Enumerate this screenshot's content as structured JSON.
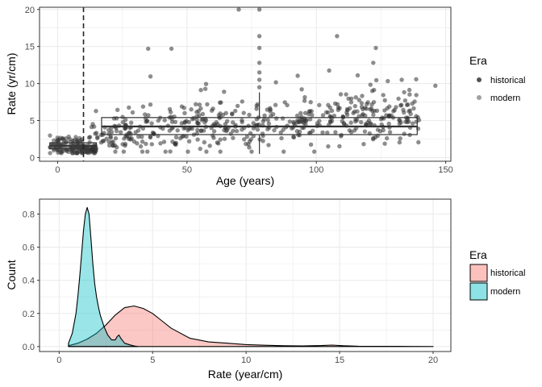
{
  "chart_data": [
    {
      "type": "scatter",
      "panel": "top",
      "xlabel": "Age (years)",
      "ylabel": "Rate (yr/cm)",
      "xlim": [
        -7,
        152
      ],
      "ylim": [
        -0.5,
        20.3
      ],
      "xticks": [
        0,
        50,
        100,
        150
      ],
      "yticks": [
        0,
        5,
        10,
        15,
        20
      ],
      "grid": true,
      "vline": {
        "x": 10,
        "style": "dashed"
      },
      "legend": {
        "title": "Era",
        "placement": "right",
        "entries": [
          "historical",
          "modern"
        ]
      },
      "series": [
        {
          "name": "modern",
          "x_range": [
            -3,
            15
          ],
          "y_range": [
            0.6,
            4.2
          ],
          "count": 170
        },
        {
          "name": "historical",
          "x_range": [
            10,
            146
          ],
          "y_range": [
            0.8,
            20
          ],
          "count": 520
        }
      ],
      "boxplots": [
        {
          "group": "modern",
          "xmin": -3,
          "xmax": 15,
          "q1": 1.2,
          "median": 1.6,
          "q3": 2.0,
          "whisker_low": 0.7,
          "whisker_high": 2.6,
          "center": 6
        },
        {
          "group": "historical",
          "xmin": 17,
          "xmax": 139,
          "q1": 3.1,
          "median": 4.2,
          "q3": 5.4,
          "whisker_low": 0.5,
          "whisker_high": 8.8,
          "center": 78
        }
      ]
    },
    {
      "type": "area",
      "panel": "bottom",
      "xlabel": "Rate (year/cm)",
      "ylabel": "Count",
      "xlim": [
        -1.05,
        20.95
      ],
      "ylim": [
        -0.03,
        0.89
      ],
      "xticks": [
        0,
        5,
        10,
        15,
        20
      ],
      "yticks": [
        0.0,
        0.2,
        0.4,
        0.6,
        0.8
      ],
      "grid": true,
      "legend": {
        "title": "Era",
        "placement": "right",
        "entries": [
          "historical",
          "modern"
        ]
      },
      "series": [
        {
          "name": "historical",
          "color": "#F8766D",
          "x": [
            0.5,
            1.0,
            1.5,
            2.0,
            2.5,
            3.0,
            3.5,
            4.0,
            4.5,
            5.0,
            5.5,
            6.0,
            7.0,
            8.0,
            9.0,
            10.0,
            11.0,
            12.0,
            13.0,
            14.0,
            14.6,
            15.2,
            16.0,
            18.0,
            20.0
          ],
          "y": [
            0.005,
            0.02,
            0.045,
            0.08,
            0.13,
            0.19,
            0.235,
            0.245,
            0.23,
            0.2,
            0.155,
            0.11,
            0.05,
            0.028,
            0.02,
            0.012,
            0.008,
            0.005,
            0.004,
            0.006,
            0.009,
            0.005,
            0.002,
            0.001,
            0.0
          ]
        },
        {
          "name": "modern",
          "color": "#00BFC4",
          "x": [
            0.5,
            0.7,
            0.9,
            1.0,
            1.1,
            1.2,
            1.3,
            1.4,
            1.5,
            1.6,
            1.7,
            1.8,
            1.9,
            2.0,
            2.1,
            2.2,
            2.4,
            2.6,
            2.8,
            3.0,
            3.1,
            3.2,
            3.3,
            3.5,
            3.8,
            4.0,
            4.2
          ],
          "y": [
            0.02,
            0.08,
            0.2,
            0.3,
            0.42,
            0.56,
            0.7,
            0.8,
            0.84,
            0.8,
            0.65,
            0.5,
            0.38,
            0.3,
            0.24,
            0.19,
            0.12,
            0.07,
            0.04,
            0.04,
            0.06,
            0.07,
            0.05,
            0.02,
            0.01,
            0.004,
            0.0
          ]
        }
      ]
    }
  ],
  "top_chart": {
    "xlabel": "Age (years)",
    "ylabel": "Rate (yr/cm)",
    "legend_title": "Era",
    "legend_items": [
      "historical",
      "modern"
    ]
  },
  "bottom_chart": {
    "xlabel": "Rate (year/cm)",
    "ylabel": "Count",
    "legend_title": "Era",
    "legend_items": [
      "historical",
      "modern"
    ]
  },
  "colors": {
    "historical_fill": "#F8766D",
    "modern_fill": "#00BFC4",
    "point": "#555555",
    "grid": "#EBEBEB",
    "panel_border": "#333333"
  }
}
